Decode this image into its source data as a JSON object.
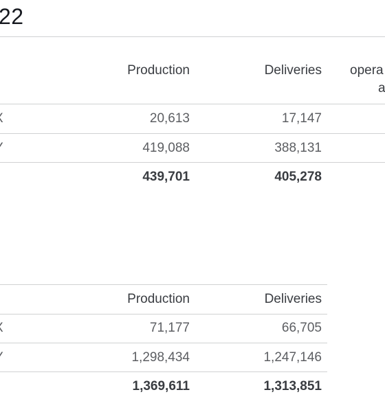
{
  "heading": "22",
  "table1": {
    "headers": [
      "Production",
      "Deliveries",
      "opera",
      "a"
    ],
    "rows": [
      {
        "label": "X",
        "production": "20,613",
        "deliveries": "17,147"
      },
      {
        "label": "Y",
        "production": "419,088",
        "deliveries": "388,131"
      }
    ],
    "total": {
      "production": "439,701",
      "deliveries": "405,278"
    }
  },
  "table2": {
    "headers": [
      "Production",
      "Deliveries"
    ],
    "rows": [
      {
        "label": "X",
        "production": "71,177",
        "deliveries": "66,705"
      },
      {
        "label": "Y",
        "production": "1,298,434",
        "deliveries": "1,247,146"
      }
    ],
    "total": {
      "production": "1,369,611",
      "deliveries": "1,313,851"
    }
  }
}
